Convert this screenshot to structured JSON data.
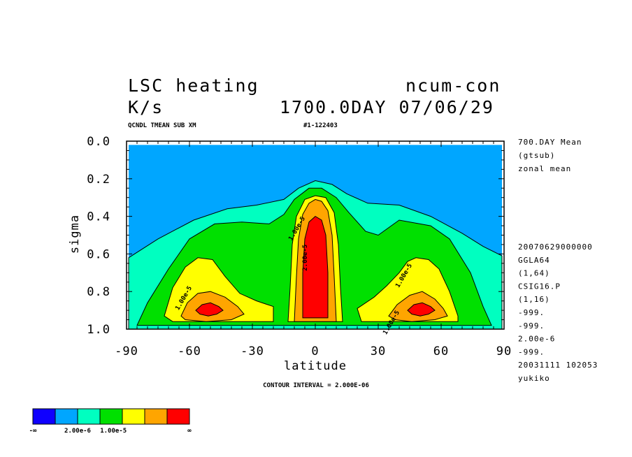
{
  "header": {
    "title_left": "LSC heating",
    "title_right": "ncum-con",
    "units": "K/s",
    "time_label": "1700.0DAY 07/06/29",
    "sub_left": "QCNDL TMEAN SUB XM",
    "sub_right": "#1-122403"
  },
  "side_info": {
    "top": [
      "700.DAY Mean",
      "(gtsub)",
      "zonal mean"
    ],
    "bottom": [
      "20070629000000",
      "GGLA64",
      "(1,64)",
      "CSIG16.P",
      "(1,16)",
      "-999.",
      "-999.",
      "2.00e-6",
      "-999.",
      "20031111 102053",
      "yukiko"
    ]
  },
  "footer": {
    "contour_interval": "CONTOUR INTERVAL = 2.000E-06"
  },
  "legend": {
    "colors": [
      "#0f00ff",
      "#00a6ff",
      "#00ffc0",
      "#00e000",
      "#ffff00",
      "#ffa500",
      "#ff0000"
    ],
    "labels": [
      "-∞",
      "2.00e-6",
      "1.00e-5",
      "∞"
    ]
  },
  "chart_data": {
    "type": "contour",
    "title": "LSC heating",
    "xlabel": "latitude",
    "ylabel": "sigma",
    "xlim": [
      -90,
      90
    ],
    "ylim": [
      0.0,
      1.0
    ],
    "y_inverted": true,
    "x_ticks": [
      -90,
      -60,
      -30,
      0,
      30,
      60,
      90
    ],
    "x_tick_labels": [
      "-90",
      "-60",
      "-30",
      "0",
      "30",
      "60",
      "90"
    ],
    "y_ticks": [
      0.0,
      0.2,
      0.4,
      0.6,
      0.8,
      1.0
    ],
    "y_tick_labels": [
      "0.0",
      "0.2",
      "0.4",
      "0.6",
      "0.8",
      "1.0"
    ],
    "contour_interval": 2e-06,
    "shading_levels": [
      2e-06,
      1e-05
    ],
    "contour_labels": [
      {
        "text": "1.00e-5",
        "lat": -8,
        "sigma": 0.47
      },
      {
        "text": "2.00e-5",
        "lat": -4,
        "sigma": 0.62
      },
      {
        "text": "1.00e-5",
        "lat": 43,
        "sigma": 0.72
      },
      {
        "text": "1.00e-5",
        "lat": -62,
        "sigma": 0.84
      },
      {
        "text": "1.00e-5",
        "lat": 37,
        "sigma": 0.97
      }
    ],
    "regions": [
      {
        "band": 0,
        "color": "#00a6ff",
        "points": [
          [
            -89,
            0.02
          ],
          [
            89,
            0.02
          ],
          [
            89,
            1.0
          ],
          [
            -89,
            1.0
          ]
        ]
      },
      {
        "band": 1,
        "color": "#00ffc0",
        "points": [
          [
            -89,
            0.62
          ],
          [
            -75,
            0.52
          ],
          [
            -58,
            0.42
          ],
          [
            -42,
            0.36
          ],
          [
            -28,
            0.34
          ],
          [
            -15,
            0.31
          ],
          [
            -8,
            0.25
          ],
          [
            0,
            0.21
          ],
          [
            8,
            0.23
          ],
          [
            15,
            0.28
          ],
          [
            25,
            0.33
          ],
          [
            40,
            0.34
          ],
          [
            55,
            0.4
          ],
          [
            70,
            0.49
          ],
          [
            80,
            0.56
          ],
          [
            89,
            0.61
          ],
          [
            89,
            1.0
          ],
          [
            -89,
            1.0
          ]
        ]
      },
      {
        "band": 2,
        "color": "#00e000",
        "points": [
          [
            -85,
            0.98
          ],
          [
            -80,
            0.86
          ],
          [
            -70,
            0.68
          ],
          [
            -60,
            0.52
          ],
          [
            -48,
            0.44
          ],
          [
            -35,
            0.43
          ],
          [
            -22,
            0.44
          ],
          [
            -15,
            0.39
          ],
          [
            -10,
            0.31
          ],
          [
            -3,
            0.25
          ],
          [
            3,
            0.25
          ],
          [
            10,
            0.3
          ],
          [
            16,
            0.38
          ],
          [
            24,
            0.48
          ],
          [
            30,
            0.5
          ],
          [
            40,
            0.42
          ],
          [
            55,
            0.45
          ],
          [
            64,
            0.52
          ],
          [
            74,
            0.7
          ],
          [
            80,
            0.88
          ],
          [
            84,
            0.98
          ]
        ]
      },
      {
        "band": 3,
        "color": "#ffff00",
        "points": [
          [
            -72,
            0.93
          ],
          [
            -68,
            0.78
          ],
          [
            -62,
            0.67
          ],
          [
            -56,
            0.62
          ],
          [
            -49,
            0.63
          ],
          [
            -43,
            0.72
          ],
          [
            -36,
            0.81
          ],
          [
            -28,
            0.85
          ],
          [
            -20,
            0.88
          ],
          [
            -20,
            0.96
          ],
          [
            -48,
            0.96
          ],
          [
            -68,
            0.96
          ]
        ]
      },
      {
        "band": 3,
        "color": "#ffff00",
        "points": [
          [
            20,
            0.89
          ],
          [
            28,
            0.83
          ],
          [
            34,
            0.77
          ],
          [
            40,
            0.7
          ],
          [
            44,
            0.64
          ],
          [
            48,
            0.62
          ],
          [
            54,
            0.63
          ],
          [
            59,
            0.68
          ],
          [
            64,
            0.8
          ],
          [
            68,
            0.93
          ],
          [
            68,
            0.96
          ],
          [
            46,
            0.96
          ],
          [
            22,
            0.96
          ]
        ]
      },
      {
        "band": 3,
        "color": "#ffff00",
        "points": [
          [
            -13,
            0.96
          ],
          [
            -12,
            0.78
          ],
          [
            -11,
            0.55
          ],
          [
            -9,
            0.4
          ],
          [
            -5,
            0.31
          ],
          [
            0,
            0.29
          ],
          [
            5,
            0.3
          ],
          [
            9,
            0.38
          ],
          [
            11,
            0.55
          ],
          [
            12,
            0.78
          ],
          [
            13,
            0.96
          ]
        ]
      },
      {
        "band": 4,
        "color": "#ffa500",
        "points": [
          [
            -64,
            0.93
          ],
          [
            -61,
            0.86
          ],
          [
            -56,
            0.81
          ],
          [
            -50,
            0.8
          ],
          [
            -43,
            0.83
          ],
          [
            -37,
            0.88
          ],
          [
            -34,
            0.92
          ],
          [
            -40,
            0.95
          ],
          [
            -52,
            0.96
          ],
          [
            -62,
            0.95
          ]
        ]
      },
      {
        "band": 4,
        "color": "#ffa500",
        "points": [
          [
            35,
            0.93
          ],
          [
            39,
            0.87
          ],
          [
            45,
            0.82
          ],
          [
            51,
            0.8
          ],
          [
            57,
            0.84
          ],
          [
            61,
            0.89
          ],
          [
            63,
            0.93
          ],
          [
            57,
            0.95
          ],
          [
            46,
            0.96
          ],
          [
            38,
            0.95
          ]
        ]
      },
      {
        "band": 4,
        "color": "#ffa500",
        "points": [
          [
            -10,
            0.96
          ],
          [
            -9,
            0.72
          ],
          [
            -8,
            0.52
          ],
          [
            -6,
            0.39
          ],
          [
            -3,
            0.33
          ],
          [
            0,
            0.31
          ],
          [
            3,
            0.32
          ],
          [
            6,
            0.37
          ],
          [
            8,
            0.5
          ],
          [
            9,
            0.72
          ],
          [
            10,
            0.96
          ]
        ]
      },
      {
        "band": 5,
        "color": "#ff0000",
        "points": [
          [
            -57,
            0.9
          ],
          [
            -54,
            0.87
          ],
          [
            -50,
            0.86
          ],
          [
            -46,
            0.88
          ],
          [
            -44,
            0.9
          ],
          [
            -47,
            0.92
          ],
          [
            -51,
            0.93
          ],
          [
            -55,
            0.92
          ]
        ]
      },
      {
        "band": 5,
        "color": "#ff0000",
        "points": [
          [
            44,
            0.9
          ],
          [
            47,
            0.87
          ],
          [
            51,
            0.86
          ],
          [
            55,
            0.88
          ],
          [
            57,
            0.9
          ],
          [
            54,
            0.92
          ],
          [
            50,
            0.93
          ],
          [
            46,
            0.92
          ]
        ]
      },
      {
        "band": 5,
        "color": "#ff0000",
        "points": [
          [
            -6,
            0.94
          ],
          [
            -6,
            0.7
          ],
          [
            -5,
            0.52
          ],
          [
            -3,
            0.43
          ],
          [
            0,
            0.4
          ],
          [
            3,
            0.42
          ],
          [
            5,
            0.5
          ],
          [
            6,
            0.7
          ],
          [
            6,
            0.94
          ]
        ]
      }
    ]
  }
}
